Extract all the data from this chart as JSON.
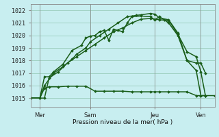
{
  "xlabel": "Pression niveau de la mer( hPa )",
  "bg_color": "#c8eef0",
  "grid_color": "#99ccbb",
  "line_color": "#1a5e1a",
  "ylim": [
    1014.3,
    1022.5
  ],
  "yticks": [
    1015,
    1016,
    1017,
    1018,
    1019,
    1020,
    1021,
    1022
  ],
  "xlim": [
    0,
    20
  ],
  "day_positions": [
    1.0,
    6.5,
    13.5,
    18.5
  ],
  "day_names": [
    "Mer",
    "Sam",
    "Jeu",
    "Ven"
  ],
  "vline_positions": [
    1.0,
    6.5,
    13.5,
    18.5
  ],
  "ybase": 1015.0,
  "marker_size": 2.0,
  "lw": 1.1,
  "series_flat_x": [
    0,
    1.0,
    1.5,
    2.0,
    3.0,
    4.0,
    5.0,
    6.0,
    7.0,
    8.0,
    9.0,
    10.0,
    11.0,
    12.0,
    13.0,
    13.5,
    14.0,
    15.0,
    16.0,
    17.0,
    18.0,
    18.5,
    19.0,
    20.0
  ],
  "series_flat_y": [
    1015.0,
    1015.0,
    1015.8,
    1015.9,
    1015.9,
    1015.95,
    1015.95,
    1015.95,
    1015.55,
    1015.55,
    1015.55,
    1015.55,
    1015.5,
    1015.5,
    1015.5,
    1015.5,
    1015.5,
    1015.5,
    1015.5,
    1015.5,
    1015.2,
    1015.2,
    1015.2,
    1015.2
  ],
  "series_a_x": [
    0,
    1.0,
    1.5,
    2.0,
    2.5,
    3.5,
    4.5,
    5.5,
    6.0,
    6.5,
    7.0,
    7.5,
    8.0,
    8.5,
    9.0,
    9.5,
    10.0,
    10.5,
    11.0,
    12.0,
    13.0,
    13.5,
    14.0,
    14.5,
    15.0,
    16.0,
    17.0,
    18.0,
    18.5,
    19.0
  ],
  "series_a_y": [
    1015.0,
    1015.0,
    1016.7,
    1016.7,
    1017.1,
    1017.7,
    1018.8,
    1019.2,
    1019.8,
    1019.95,
    1020.0,
    1020.3,
    1020.4,
    1019.6,
    1020.5,
    1020.4,
    1020.3,
    1021.0,
    1021.5,
    1021.55,
    1021.5,
    1021.25,
    1021.5,
    1021.25,
    1021.0,
    1020.0,
    1018.0,
    1017.8,
    1017.8,
    1017.0
  ],
  "series_b_x": [
    0,
    1.0,
    1.5,
    2.5,
    3.5,
    4.5,
    5.0,
    6.0,
    6.5,
    7.5,
    8.5,
    9.5,
    10.5,
    11.5,
    12.0,
    13.0,
    13.5,
    14.0,
    15.0,
    16.0,
    17.0,
    18.0,
    18.5,
    19.0
  ],
  "series_b_y": [
    1015.0,
    1015.0,
    1016.0,
    1017.0,
    1017.5,
    1018.1,
    1018.5,
    1019.0,
    1019.5,
    1020.0,
    1020.5,
    1021.0,
    1021.5,
    1021.6,
    1021.65,
    1021.75,
    1021.7,
    1021.4,
    1021.25,
    1020.2,
    1018.0,
    1017.2,
    1015.2,
    1015.2
  ],
  "series_c_x": [
    0,
    1.0,
    1.5,
    2.0,
    3.0,
    4.0,
    5.0,
    6.0,
    7.0,
    8.0,
    9.0,
    10.0,
    11.0,
    12.0,
    13.0,
    13.5,
    14.0,
    15.0,
    16.0,
    17.0,
    18.0,
    18.5,
    19.0
  ],
  "series_c_y": [
    1015.0,
    1015.0,
    1015.0,
    1016.6,
    1017.1,
    1017.8,
    1018.3,
    1018.8,
    1019.3,
    1019.8,
    1020.3,
    1020.6,
    1021.0,
    1021.3,
    1021.35,
    1021.3,
    1021.25,
    1021.2,
    1020.1,
    1018.7,
    1018.3,
    1017.1,
    1015.2
  ]
}
